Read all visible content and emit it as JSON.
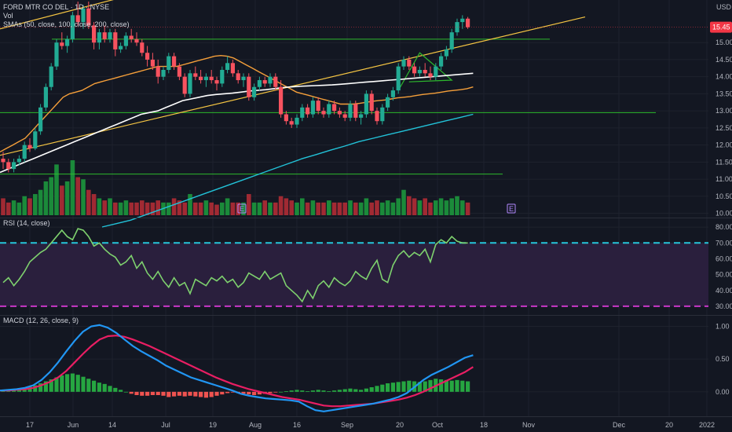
{
  "chart_data": {
    "type": "candlestick",
    "title": "FORD MTR CO DEL, 1D, NYSE",
    "currency": "USD",
    "colors": {
      "background": "#131722",
      "up": "#26a69a",
      "up_candle": "#22ab94",
      "down": "#f23645",
      "down_candle": "#f7525f",
      "vol_up": "#1b8a3a",
      "vol_down": "#a12a33",
      "sma50": "#f59f3a",
      "sma100": "#ffffff",
      "sma200": "#22c2d8",
      "trendline": "#f5c543",
      "hline": "#2db82d",
      "rsi": "#7ed16e",
      "rsi_band": "#2a1f3d",
      "rsi_upper": "#26c6da",
      "rsi_lower": "#c837c8",
      "macd": "#2196f3",
      "signal": "#e91e63",
      "hist_up": "#26a641",
      "hist_down": "#ef5350",
      "price_tag": "#f23645",
      "event_marker": "#b388ff"
    },
    "price": {
      "label": "15.45",
      "axis_ticks": [
        "15.00",
        "14.50",
        "14.00",
        "13.50",
        "13.00",
        "12.50",
        "12.00",
        "11.50",
        "11.00",
        "10.50",
        "10.00"
      ],
      "range": [
        9.9,
        16.2
      ],
      "candles": [
        [
          11.6,
          11.8,
          11.3,
          11.5
        ],
        [
          11.5,
          11.6,
          11.2,
          11.3
        ],
        [
          11.3,
          11.6,
          11.2,
          11.5
        ],
        [
          11.5,
          11.7,
          11.4,
          11.6
        ],
        [
          11.6,
          12.1,
          11.5,
          12.0
        ],
        [
          12.0,
          12.2,
          11.8,
          11.9
        ],
        [
          11.9,
          12.5,
          11.85,
          12.4
        ],
        [
          12.4,
          13.2,
          12.3,
          13.1
        ],
        [
          13.1,
          13.8,
          13.0,
          13.7
        ],
        [
          13.7,
          14.4,
          13.6,
          14.3
        ],
        [
          14.3,
          15.1,
          14.2,
          15.0
        ],
        [
          15.0,
          15.3,
          14.8,
          14.9
        ],
        [
          14.9,
          15.2,
          14.7,
          15.1
        ],
        [
          15.1,
          15.9,
          15.0,
          15.8
        ],
        [
          15.8,
          16.2,
          15.5,
          15.6
        ],
        [
          15.6,
          16.1,
          15.4,
          16.0
        ],
        [
          16.0,
          16.2,
          15.4,
          15.5
        ],
        [
          15.5,
          15.6,
          14.8,
          15.0
        ],
        [
          15.0,
          15.4,
          14.8,
          15.3
        ],
        [
          15.3,
          15.5,
          15.0,
          15.1
        ],
        [
          15.1,
          15.4,
          15.0,
          15.3
        ],
        [
          15.3,
          15.4,
          14.6,
          14.8
        ],
        [
          14.8,
          15.0,
          14.7,
          14.9
        ],
        [
          14.9,
          15.3,
          14.8,
          15.2
        ],
        [
          15.2,
          15.4,
          15.0,
          15.1
        ],
        [
          15.1,
          15.3,
          14.9,
          15.0
        ],
        [
          15.0,
          15.1,
          14.6,
          14.7
        ],
        [
          14.7,
          14.9,
          14.3,
          14.5
        ],
        [
          14.5,
          14.7,
          14.2,
          14.3
        ],
        [
          14.3,
          14.5,
          13.8,
          14.0
        ],
        [
          14.0,
          14.3,
          13.9,
          14.2
        ],
        [
          14.2,
          14.7,
          14.1,
          14.6
        ],
        [
          14.6,
          14.7,
          14.2,
          14.3
        ],
        [
          14.3,
          14.4,
          13.9,
          14.0
        ],
        [
          14.0,
          14.1,
          13.4,
          13.5
        ],
        [
          13.5,
          14.2,
          13.4,
          14.1
        ],
        [
          14.1,
          14.3,
          13.9,
          14.0
        ],
        [
          14.0,
          14.2,
          13.8,
          13.9
        ],
        [
          13.9,
          14.1,
          13.7,
          14.0
        ],
        [
          14.0,
          14.2,
          13.8,
          13.9
        ],
        [
          13.9,
          14.0,
          13.6,
          13.8
        ],
        [
          13.8,
          14.3,
          13.7,
          14.2
        ],
        [
          14.2,
          14.6,
          14.1,
          14.4
        ],
        [
          14.4,
          14.5,
          14.0,
          14.1
        ],
        [
          14.1,
          14.2,
          13.8,
          13.9
        ],
        [
          13.9,
          14.1,
          13.7,
          14.0
        ],
        [
          14.0,
          14.1,
          13.3,
          13.4
        ],
        [
          13.4,
          13.8,
          13.3,
          13.7
        ],
        [
          13.7,
          14.0,
          13.6,
          13.9
        ],
        [
          13.9,
          14.0,
          13.7,
          13.8
        ],
        [
          13.8,
          14.1,
          13.7,
          14.0
        ],
        [
          14.0,
          14.1,
          13.6,
          13.7
        ],
        [
          13.7,
          13.9,
          12.8,
          12.9
        ],
        [
          12.9,
          13.0,
          12.6,
          12.7
        ],
        [
          12.7,
          12.8,
          12.5,
          12.6
        ],
        [
          12.6,
          12.9,
          12.5,
          12.8
        ],
        [
          12.8,
          13.2,
          12.7,
          13.1
        ],
        [
          13.1,
          13.2,
          12.8,
          12.9
        ],
        [
          12.9,
          13.4,
          12.8,
          13.3
        ],
        [
          13.3,
          13.4,
          12.9,
          13.0
        ],
        [
          13.0,
          13.1,
          12.8,
          12.9
        ],
        [
          12.9,
          13.3,
          12.8,
          13.2
        ],
        [
          13.2,
          13.3,
          12.9,
          13.0
        ],
        [
          13.0,
          13.1,
          12.8,
          12.9
        ],
        [
          12.9,
          13.0,
          12.7,
          12.8
        ],
        [
          12.8,
          13.3,
          12.7,
          13.2
        ],
        [
          13.2,
          13.3,
          12.7,
          12.8
        ],
        [
          12.8,
          13.0,
          12.6,
          12.9
        ],
        [
          12.9,
          13.6,
          12.8,
          13.5
        ],
        [
          13.5,
          13.6,
          12.9,
          13.0
        ],
        [
          13.0,
          13.1,
          12.6,
          12.7
        ],
        [
          12.7,
          13.2,
          12.6,
          13.1
        ],
        [
          13.1,
          13.5,
          13.0,
          13.4
        ],
        [
          13.4,
          13.7,
          13.3,
          13.6
        ],
        [
          13.6,
          14.4,
          13.5,
          14.3
        ],
        [
          14.3,
          14.6,
          14.2,
          14.5
        ],
        [
          14.5,
          14.6,
          14.2,
          14.3
        ],
        [
          14.3,
          14.4,
          14.0,
          14.1
        ],
        [
          14.1,
          14.3,
          14.0,
          14.2
        ],
        [
          14.2,
          14.4,
          14.0,
          14.1
        ],
        [
          14.1,
          14.3,
          13.9,
          14.0
        ],
        [
          14.0,
          14.4,
          13.9,
          14.3
        ],
        [
          14.3,
          14.7,
          14.2,
          14.6
        ],
        [
          14.6,
          14.9,
          14.5,
          14.8
        ],
        [
          14.8,
          15.4,
          14.7,
          15.3
        ],
        [
          15.3,
          15.7,
          15.2,
          15.6
        ],
        [
          15.6,
          15.8,
          15.4,
          15.7
        ],
        [
          15.7,
          15.75,
          15.4,
          15.45
        ]
      ]
    },
    "volume": {
      "values": [
        0.4,
        0.3,
        0.35,
        0.3,
        0.45,
        0.4,
        0.5,
        0.6,
        0.8,
        0.9,
        1.2,
        0.7,
        0.8,
        1.3,
        0.9,
        0.85,
        0.6,
        0.5,
        0.4,
        0.35,
        0.4,
        0.3,
        0.3,
        0.35,
        0.3,
        0.3,
        0.35,
        0.3,
        0.3,
        0.35,
        0.3,
        0.3,
        0.4,
        0.35,
        0.3,
        0.5,
        0.3,
        0.3,
        0.35,
        0.3,
        0.25,
        0.3,
        0.4,
        0.3,
        0.3,
        0.3,
        0.5,
        0.3,
        0.3,
        0.35,
        0.3,
        0.3,
        0.45,
        0.4,
        0.35,
        0.3,
        0.4,
        0.3,
        0.35,
        0.3,
        0.3,
        0.35,
        0.3,
        0.3,
        0.3,
        0.35,
        0.3,
        0.3,
        0.4,
        0.3,
        0.35,
        0.3,
        0.35,
        0.3,
        0.4,
        0.6,
        0.45,
        0.4,
        0.35,
        0.4,
        0.3,
        0.35,
        0.4,
        0.35,
        0.4,
        0.45,
        0.35,
        0.3
      ],
      "event_markers": [
        "E",
        "E"
      ]
    },
    "sma": [
      {
        "name": "SMA 50",
        "values": [
          11.8,
          11.9,
          12.0,
          12.1,
          12.2,
          12.4,
          12.6,
          12.8,
          13.0,
          13.2,
          13.4,
          13.5,
          13.55,
          13.6,
          13.7,
          13.8,
          13.85,
          13.9,
          13.95,
          14.0,
          14.05,
          14.1,
          14.15,
          14.2,
          14.25,
          14.3,
          14.3,
          14.3,
          14.3,
          14.35,
          14.4,
          14.45,
          14.5,
          14.55,
          14.6,
          14.62,
          14.6,
          14.55,
          14.45,
          14.35,
          14.25,
          14.15,
          14.05,
          13.95,
          13.85,
          13.75,
          13.65,
          13.55,
          13.5,
          13.45,
          13.4,
          13.35,
          13.3,
          13.25,
          13.2,
          13.2,
          13.2,
          13.22,
          13.25,
          13.28,
          13.3,
          13.32,
          13.35,
          13.38,
          13.4,
          13.42,
          13.45,
          13.48,
          13.5,
          13.52,
          13.55,
          13.58,
          13.6,
          13.62,
          13.65,
          13.7
        ]
      },
      {
        "name": "SMA 100",
        "values": [
          11.2,
          11.3,
          11.4,
          11.5,
          11.6,
          11.7,
          11.8,
          11.9,
          12.0,
          12.1,
          12.2,
          12.3,
          12.4,
          12.5,
          12.6,
          12.7,
          12.8,
          12.9,
          12.95,
          13.0,
          13.1,
          13.2,
          13.3,
          13.35,
          13.4,
          13.45,
          13.48,
          13.5,
          13.52,
          13.55,
          13.58,
          13.6,
          13.62,
          13.65,
          13.68,
          13.7,
          13.72,
          13.73,
          13.74,
          13.75,
          13.76,
          13.78,
          13.8,
          13.82,
          13.84,
          13.86,
          13.88,
          13.9,
          13.92,
          13.94,
          13.96,
          13.98,
          14.0,
          14.02,
          14.04,
          14.06,
          14.08,
          14.1
        ]
      },
      {
        "name": "SMA 200",
        "values": [
          9.6,
          9.7,
          9.8,
          9.95,
          10.1,
          10.25,
          10.4,
          10.55,
          10.7,
          10.85,
          11.0,
          11.15,
          11.3,
          11.45,
          11.6,
          11.72,
          11.85,
          11.97,
          12.1,
          12.2,
          12.3,
          12.4,
          12.5,
          12.6,
          12.7,
          12.8,
          12.9
        ]
      }
    ],
    "legend": {
      "line1": "FORD MTR CO DEL  ·  1D  ·  NYSE",
      "line2": "Vol",
      "line3": "SMAs (50, close, 100, close, 200, close)"
    },
    "x_ticks": [
      "17",
      "Jun",
      "14",
      "Jul",
      "19",
      "Aug",
      "16",
      "Sep",
      "20",
      "Oct",
      "18",
      "Nov",
      "Dec",
      "20",
      "2022"
    ],
    "rsi": {
      "label": "RSI (14, close)",
      "axis_ticks": [
        "80.00",
        "70.00",
        "60.00",
        "50.00",
        "40.00",
        "30.00"
      ],
      "upper": 70,
      "lower": 30,
      "range": [
        25,
        85
      ],
      "values": [
        45,
        48,
        43,
        47,
        52,
        58,
        61,
        64,
        66,
        70,
        74,
        78,
        74,
        72,
        79,
        78,
        74,
        68,
        70,
        66,
        63,
        61,
        56,
        58,
        62,
        54,
        58,
        51,
        47,
        52,
        46,
        42,
        48,
        43,
        45,
        38,
        47,
        45,
        43,
        48,
        46,
        49,
        45,
        47,
        42,
        45,
        51,
        49,
        47,
        52,
        47,
        49,
        51,
        43,
        40,
        37,
        33,
        40,
        35,
        43,
        46,
        42,
        48,
        45,
        43,
        46,
        52,
        49,
        47,
        54,
        59,
        47,
        45,
        56,
        62,
        65,
        61,
        64,
        62,
        66,
        58,
        69,
        72,
        70,
        74,
        71,
        70,
        70
      ]
    },
    "macd": {
      "label": "MACD (12, 26, close, 9)",
      "axis_ticks": [
        "1.00",
        "0.50",
        "0.00"
      ],
      "range": [
        -0.35,
        1.15
      ],
      "macd": [
        0.02,
        0.03,
        0.04,
        0.06,
        0.1,
        0.18,
        0.3,
        0.45,
        0.62,
        0.78,
        0.92,
        1.0,
        1.02,
        0.98,
        0.9,
        0.8,
        0.7,
        0.62,
        0.55,
        0.48,
        0.4,
        0.34,
        0.28,
        0.22,
        0.18,
        0.14,
        0.1,
        0.06,
        0.02,
        -0.03,
        -0.06,
        -0.08,
        -0.1,
        -0.11,
        -0.12,
        -0.13,
        -0.15,
        -0.22,
        -0.28,
        -0.3,
        -0.28,
        -0.26,
        -0.24,
        -0.22,
        -0.2,
        -0.18,
        -0.15,
        -0.12,
        -0.08,
        -0.02,
        0.08,
        0.18,
        0.26,
        0.32,
        0.38,
        0.45,
        0.52,
        0.56
      ],
      "signal": [
        0.02,
        0.02,
        0.03,
        0.04,
        0.06,
        0.1,
        0.15,
        0.22,
        0.32,
        0.45,
        0.58,
        0.7,
        0.8,
        0.85,
        0.86,
        0.84,
        0.8,
        0.75,
        0.7,
        0.64,
        0.58,
        0.52,
        0.46,
        0.4,
        0.34,
        0.28,
        0.22,
        0.17,
        0.12,
        0.08,
        0.04,
        0.01,
        -0.02,
        -0.05,
        -0.08,
        -0.1,
        -0.12,
        -0.15,
        -0.18,
        -0.21,
        -0.22,
        -0.22,
        -0.21,
        -0.2,
        -0.19,
        -0.18,
        -0.16,
        -0.14,
        -0.12,
        -0.09,
        -0.05,
        0.0,
        0.06,
        0.12,
        0.18,
        0.24,
        0.3,
        0.38
      ],
      "hist": [
        0.01,
        0.02,
        0.03,
        0.04,
        0.06,
        0.08,
        0.1,
        0.13,
        0.16,
        0.19,
        0.22,
        0.25,
        0.27,
        0.28,
        0.26,
        0.23,
        0.2,
        0.17,
        0.14,
        0.12,
        0.09,
        0.06,
        0.03,
        0.0,
        -0.03,
        -0.05,
        -0.06,
        -0.06,
        -0.05,
        -0.05,
        -0.06,
        -0.08,
        -0.07,
        -0.06,
        -0.07,
        -0.06,
        -0.07,
        -0.08,
        -0.09,
        -0.08,
        -0.06,
        -0.04,
        -0.02,
        -0.01,
        -0.02,
        -0.03,
        -0.04,
        -0.05,
        -0.04,
        -0.03,
        -0.02,
        -0.01,
        0.0,
        0.01,
        0.02,
        0.03,
        0.02,
        0.01,
        0.02,
        0.03,
        0.02,
        0.01,
        0.02,
        0.03,
        0.04,
        0.05,
        0.04,
        0.03,
        0.05,
        0.07,
        0.09,
        0.11,
        0.13,
        0.14,
        0.15,
        0.16,
        0.17,
        0.16,
        0.15,
        0.16,
        0.18,
        0.2,
        0.19,
        0.18,
        0.17,
        0.18,
        0.17,
        0.16
      ]
    }
  }
}
